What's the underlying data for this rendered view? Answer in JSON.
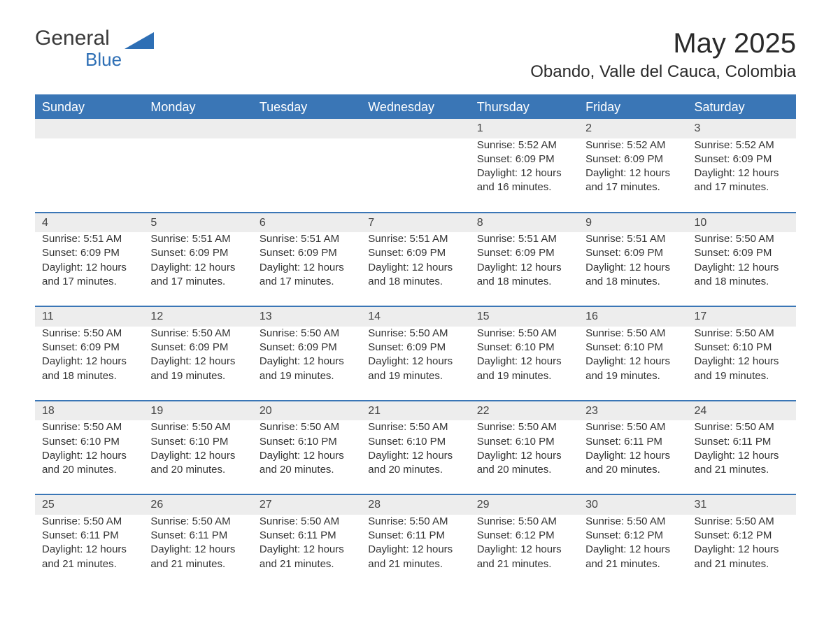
{
  "logo": {
    "general": "General",
    "blue": "Blue"
  },
  "header": {
    "title": "May 2025",
    "location": "Obando, Valle del Cauca, Colombia"
  },
  "colors": {
    "header_bg": "#3a76b6",
    "header_text": "#ffffff",
    "daynum_bg": "#ededed",
    "text": "#333333",
    "logo_blue": "#2e6fb5",
    "page_bg": "#ffffff",
    "separator": "#3a76b6"
  },
  "typography": {
    "title_fontsize": 40,
    "location_fontsize": 24,
    "dayhead_fontsize": 18,
    "body_fontsize": 15
  },
  "days_of_week": [
    "Sunday",
    "Monday",
    "Tuesday",
    "Wednesday",
    "Thursday",
    "Friday",
    "Saturday"
  ],
  "weeks": [
    [
      null,
      null,
      null,
      null,
      {
        "n": "1",
        "sunrise": "Sunrise: 5:52 AM",
        "sunset": "Sunset: 6:09 PM",
        "daylight": "Daylight: 12 hours and 16 minutes."
      },
      {
        "n": "2",
        "sunrise": "Sunrise: 5:52 AM",
        "sunset": "Sunset: 6:09 PM",
        "daylight": "Daylight: 12 hours and 17 minutes."
      },
      {
        "n": "3",
        "sunrise": "Sunrise: 5:52 AM",
        "sunset": "Sunset: 6:09 PM",
        "daylight": "Daylight: 12 hours and 17 minutes."
      }
    ],
    [
      {
        "n": "4",
        "sunrise": "Sunrise: 5:51 AM",
        "sunset": "Sunset: 6:09 PM",
        "daylight": "Daylight: 12 hours and 17 minutes."
      },
      {
        "n": "5",
        "sunrise": "Sunrise: 5:51 AM",
        "sunset": "Sunset: 6:09 PM",
        "daylight": "Daylight: 12 hours and 17 minutes."
      },
      {
        "n": "6",
        "sunrise": "Sunrise: 5:51 AM",
        "sunset": "Sunset: 6:09 PM",
        "daylight": "Daylight: 12 hours and 17 minutes."
      },
      {
        "n": "7",
        "sunrise": "Sunrise: 5:51 AM",
        "sunset": "Sunset: 6:09 PM",
        "daylight": "Daylight: 12 hours and 18 minutes."
      },
      {
        "n": "8",
        "sunrise": "Sunrise: 5:51 AM",
        "sunset": "Sunset: 6:09 PM",
        "daylight": "Daylight: 12 hours and 18 minutes."
      },
      {
        "n": "9",
        "sunrise": "Sunrise: 5:51 AM",
        "sunset": "Sunset: 6:09 PM",
        "daylight": "Daylight: 12 hours and 18 minutes."
      },
      {
        "n": "10",
        "sunrise": "Sunrise: 5:50 AM",
        "sunset": "Sunset: 6:09 PM",
        "daylight": "Daylight: 12 hours and 18 minutes."
      }
    ],
    [
      {
        "n": "11",
        "sunrise": "Sunrise: 5:50 AM",
        "sunset": "Sunset: 6:09 PM",
        "daylight": "Daylight: 12 hours and 18 minutes."
      },
      {
        "n": "12",
        "sunrise": "Sunrise: 5:50 AM",
        "sunset": "Sunset: 6:09 PM",
        "daylight": "Daylight: 12 hours and 19 minutes."
      },
      {
        "n": "13",
        "sunrise": "Sunrise: 5:50 AM",
        "sunset": "Sunset: 6:09 PM",
        "daylight": "Daylight: 12 hours and 19 minutes."
      },
      {
        "n": "14",
        "sunrise": "Sunrise: 5:50 AM",
        "sunset": "Sunset: 6:09 PM",
        "daylight": "Daylight: 12 hours and 19 minutes."
      },
      {
        "n": "15",
        "sunrise": "Sunrise: 5:50 AM",
        "sunset": "Sunset: 6:10 PM",
        "daylight": "Daylight: 12 hours and 19 minutes."
      },
      {
        "n": "16",
        "sunrise": "Sunrise: 5:50 AM",
        "sunset": "Sunset: 6:10 PM",
        "daylight": "Daylight: 12 hours and 19 minutes."
      },
      {
        "n": "17",
        "sunrise": "Sunrise: 5:50 AM",
        "sunset": "Sunset: 6:10 PM",
        "daylight": "Daylight: 12 hours and 19 minutes."
      }
    ],
    [
      {
        "n": "18",
        "sunrise": "Sunrise: 5:50 AM",
        "sunset": "Sunset: 6:10 PM",
        "daylight": "Daylight: 12 hours and 20 minutes."
      },
      {
        "n": "19",
        "sunrise": "Sunrise: 5:50 AM",
        "sunset": "Sunset: 6:10 PM",
        "daylight": "Daylight: 12 hours and 20 minutes."
      },
      {
        "n": "20",
        "sunrise": "Sunrise: 5:50 AM",
        "sunset": "Sunset: 6:10 PM",
        "daylight": "Daylight: 12 hours and 20 minutes."
      },
      {
        "n": "21",
        "sunrise": "Sunrise: 5:50 AM",
        "sunset": "Sunset: 6:10 PM",
        "daylight": "Daylight: 12 hours and 20 minutes."
      },
      {
        "n": "22",
        "sunrise": "Sunrise: 5:50 AM",
        "sunset": "Sunset: 6:10 PM",
        "daylight": "Daylight: 12 hours and 20 minutes."
      },
      {
        "n": "23",
        "sunrise": "Sunrise: 5:50 AM",
        "sunset": "Sunset: 6:11 PM",
        "daylight": "Daylight: 12 hours and 20 minutes."
      },
      {
        "n": "24",
        "sunrise": "Sunrise: 5:50 AM",
        "sunset": "Sunset: 6:11 PM",
        "daylight": "Daylight: 12 hours and 21 minutes."
      }
    ],
    [
      {
        "n": "25",
        "sunrise": "Sunrise: 5:50 AM",
        "sunset": "Sunset: 6:11 PM",
        "daylight": "Daylight: 12 hours and 21 minutes."
      },
      {
        "n": "26",
        "sunrise": "Sunrise: 5:50 AM",
        "sunset": "Sunset: 6:11 PM",
        "daylight": "Daylight: 12 hours and 21 minutes."
      },
      {
        "n": "27",
        "sunrise": "Sunrise: 5:50 AM",
        "sunset": "Sunset: 6:11 PM",
        "daylight": "Daylight: 12 hours and 21 minutes."
      },
      {
        "n": "28",
        "sunrise": "Sunrise: 5:50 AM",
        "sunset": "Sunset: 6:11 PM",
        "daylight": "Daylight: 12 hours and 21 minutes."
      },
      {
        "n": "29",
        "sunrise": "Sunrise: 5:50 AM",
        "sunset": "Sunset: 6:12 PM",
        "daylight": "Daylight: 12 hours and 21 minutes."
      },
      {
        "n": "30",
        "sunrise": "Sunrise: 5:50 AM",
        "sunset": "Sunset: 6:12 PM",
        "daylight": "Daylight: 12 hours and 21 minutes."
      },
      {
        "n": "31",
        "sunrise": "Sunrise: 5:50 AM",
        "sunset": "Sunset: 6:12 PM",
        "daylight": "Daylight: 12 hours and 21 minutes."
      }
    ]
  ]
}
